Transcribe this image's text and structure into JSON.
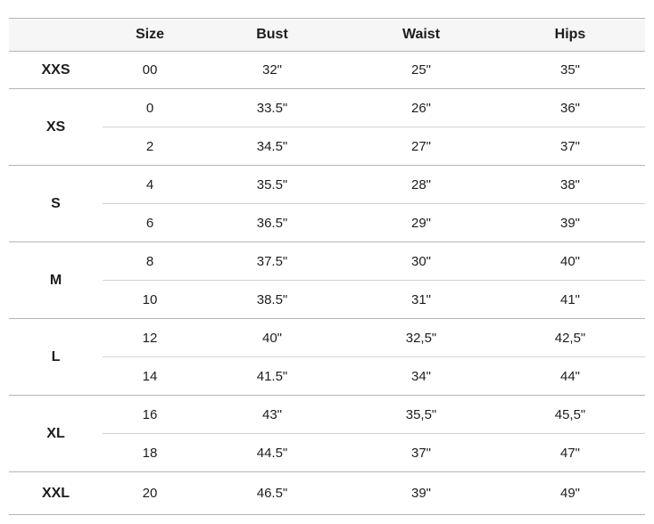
{
  "page": {
    "background_color": "#ffffff",
    "text_color": "#1d1d1d",
    "header_background_color": "#f6f6f6",
    "group_separator_color": "#b5b5b5",
    "subrow_separator_color": "#d2d2d2"
  },
  "chart_data": {
    "type": "table",
    "title": "",
    "columns": [
      "",
      "Size",
      "Bust",
      "Waist",
      "Hips"
    ],
    "groups": [
      {
        "label": "XXS",
        "rows": [
          [
            "00",
            "32\"",
            "25\"",
            "35\""
          ]
        ]
      },
      {
        "label": "XS",
        "rows": [
          [
            "0",
            "33.5\"",
            "26\"",
            "36\""
          ],
          [
            "2",
            "34.5\"",
            "27\"",
            "37\""
          ]
        ]
      },
      {
        "label": "S",
        "rows": [
          [
            "4",
            "35.5\"",
            "28\"",
            "38\""
          ],
          [
            "6",
            "36.5\"",
            "29\"",
            "39\""
          ]
        ]
      },
      {
        "label": "M",
        "rows": [
          [
            "8",
            "37.5\"",
            "30\"",
            "40\""
          ],
          [
            "10",
            "38.5\"",
            "31\"",
            "41\""
          ]
        ]
      },
      {
        "label": "L",
        "rows": [
          [
            "12",
            "40\"",
            "32,5\"",
            "42,5\""
          ],
          [
            "14",
            "41.5\"",
            "34\"",
            "44\""
          ]
        ]
      },
      {
        "label": "XL",
        "rows": [
          [
            "16",
            "43\"",
            "35,5\"",
            "45,5\""
          ],
          [
            "18",
            "44.5\"",
            "37\"",
            "47\""
          ]
        ]
      },
      {
        "label": "XXL",
        "rows": [
          [
            "20",
            "46.5\"",
            "39\"",
            "49\""
          ]
        ]
      }
    ]
  }
}
